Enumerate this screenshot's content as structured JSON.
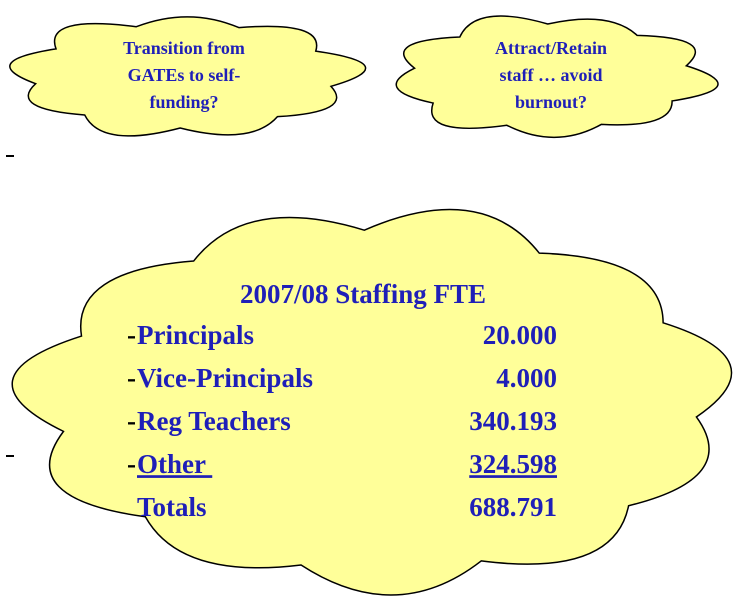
{
  "clouds": [
    {
      "lines": [
        "Transition from",
        "GATEs to self-",
        "funding?"
      ]
    },
    {
      "lines": [
        "Attract/Retain",
        "staff … avoid",
        "burnout?"
      ]
    }
  ],
  "staffing": {
    "title": "2007/08 Staffing  FTE",
    "rows": [
      {
        "bullet": "-",
        "label": "Principals",
        "value": "20.000"
      },
      {
        "bullet": "-",
        "label": "Vice-Principals",
        "value": "4.000"
      },
      {
        "bullet": "-",
        "label": "Reg Teachers",
        "value": "340.193"
      },
      {
        "bullet": "-",
        "label": "Other ",
        "value": "324.598",
        "underline": true
      },
      {
        "label": "Totals",
        "value": "688.791"
      }
    ]
  }
}
